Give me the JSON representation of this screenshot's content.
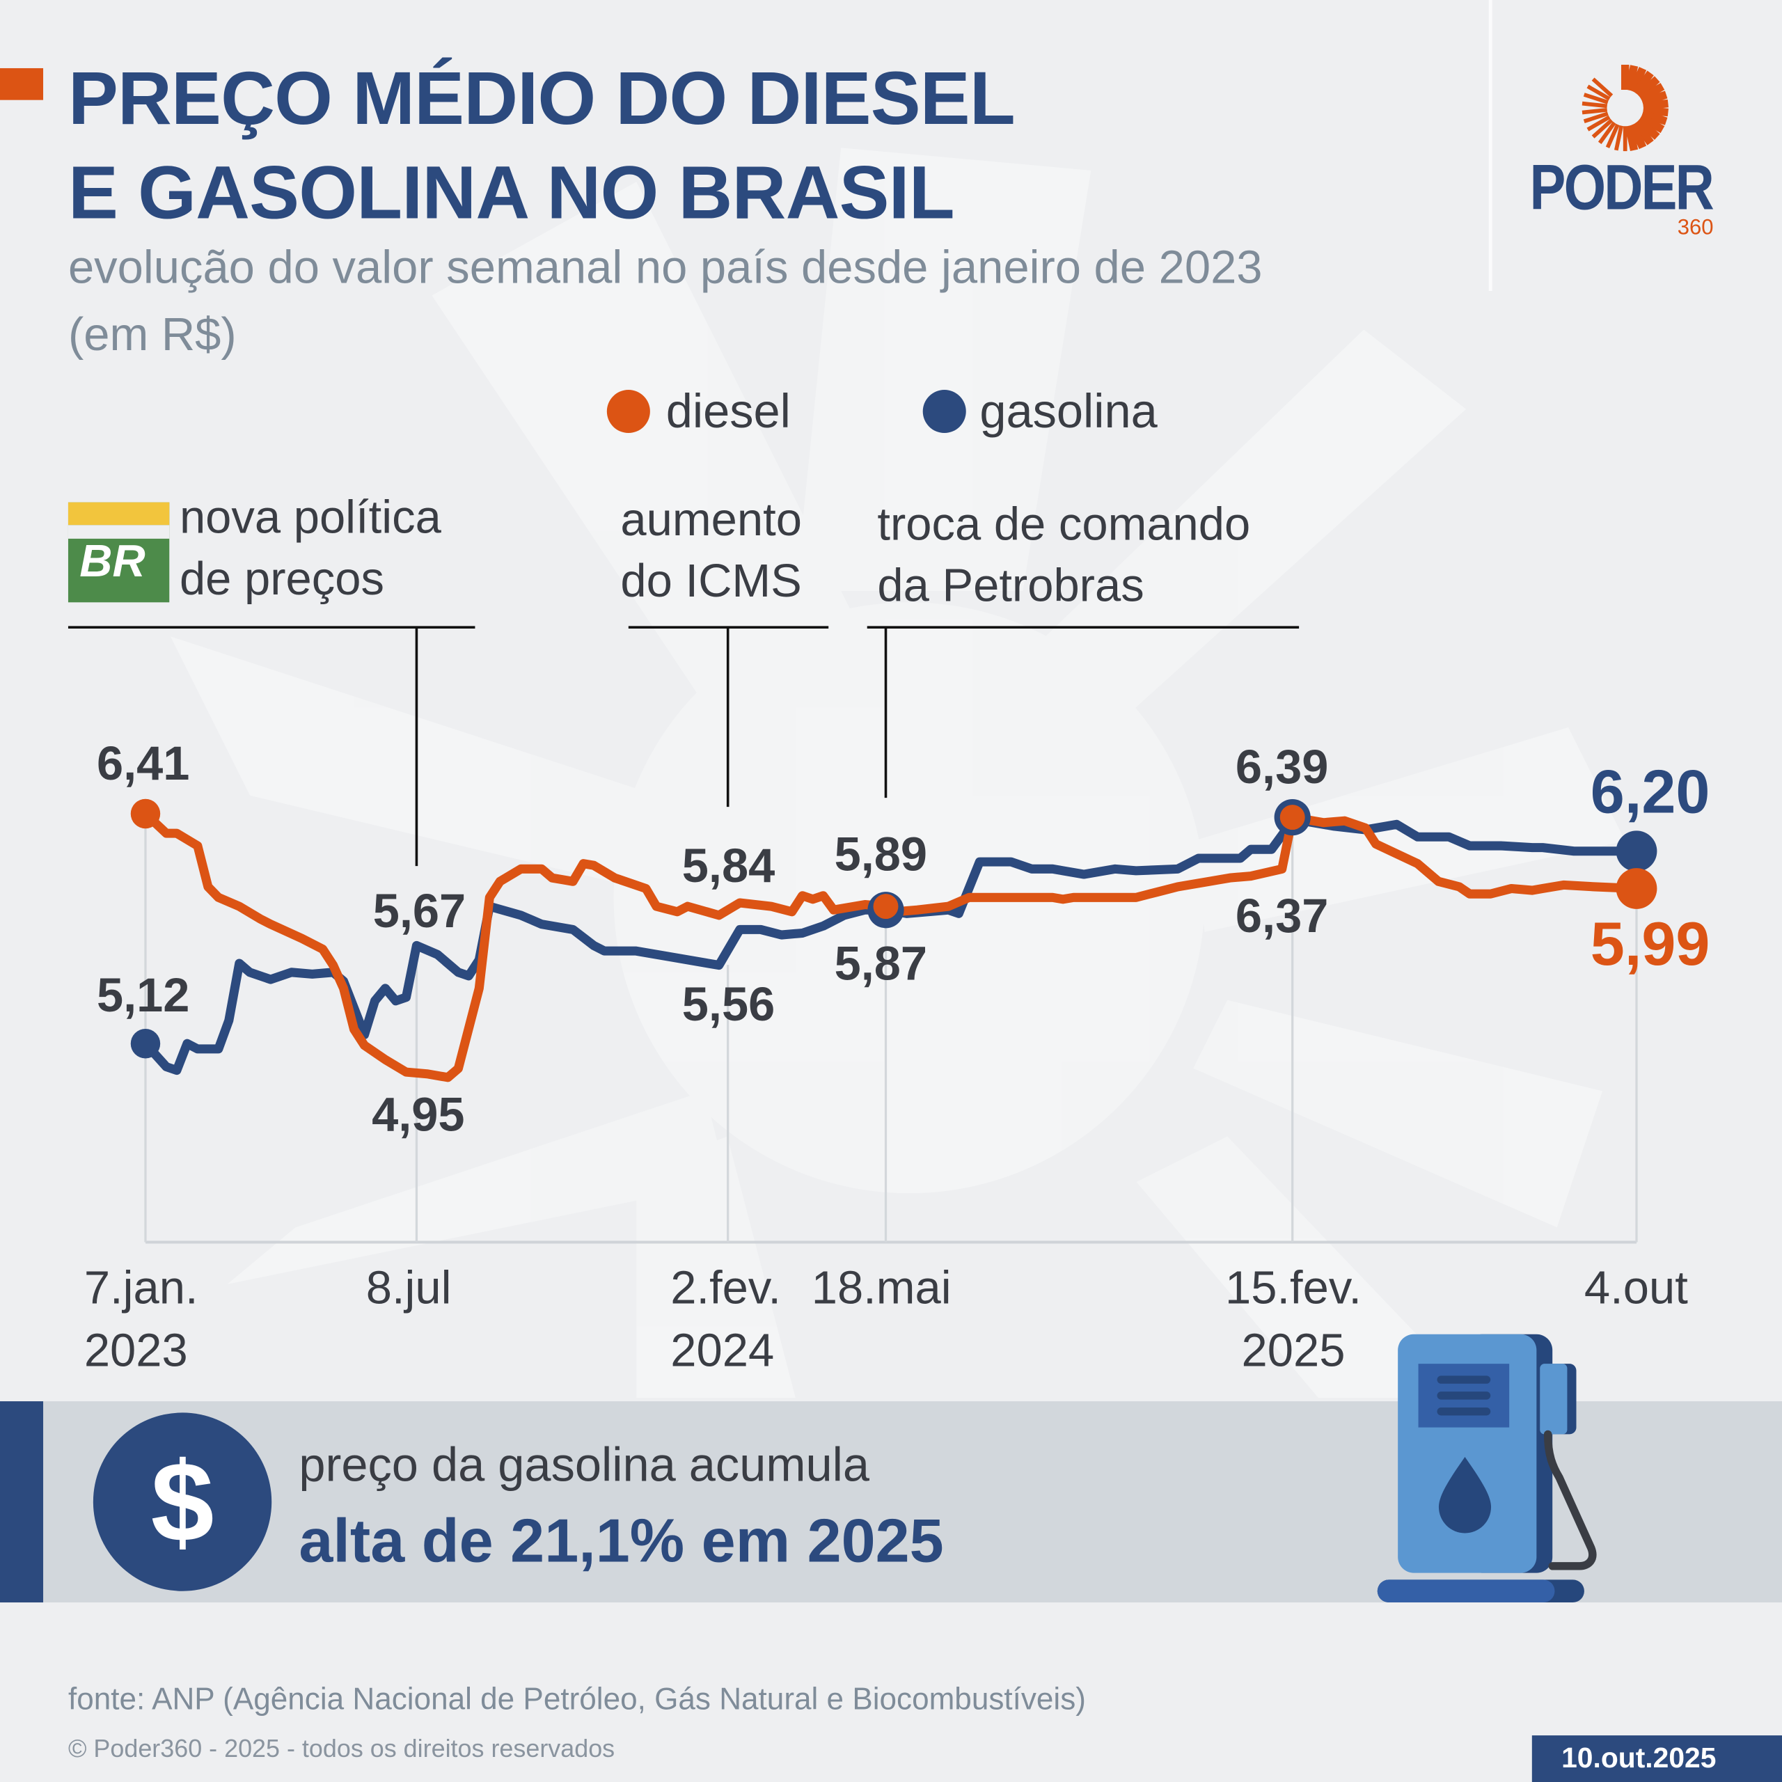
{
  "header": {
    "title_line1": "PREÇO MÉDIO DO DIESEL",
    "title_line2": "E GASOLINA NO BRASIL",
    "subtitle_line1": "evolução do valor semanal no país desde janeiro de 2023",
    "subtitle_line2": "(em R$)"
  },
  "logo": {
    "name": "PODER",
    "suffix": "360"
  },
  "legend": [
    {
      "label": "diesel",
      "color": "#dc5414"
    },
    {
      "label": "gasolina",
      "color": "#2c4a7e"
    }
  ],
  "annotations": [
    {
      "line1": "nova política",
      "line2": "de preços",
      "logo_text": "BR",
      "date": "2023-07-08"
    },
    {
      "line1": "aumento",
      "line2": "do ICMS",
      "date": "2024-02-02"
    },
    {
      "line1": "troca de comando",
      "line2": "da Petrobras",
      "date": "2024-05-18"
    }
  ],
  "chart_data": {
    "type": "line",
    "x_ticks": [
      {
        "date": "2023-01-07",
        "line1": "7.jan.",
        "line2": "2023"
      },
      {
        "date": "2023-07-08",
        "line1": "8.jul",
        "line2": ""
      },
      {
        "date": "2024-02-02",
        "line1": "2.fev.",
        "line2": "2024"
      },
      {
        "date": "2024-05-18",
        "line1": "18.mai",
        "line2": ""
      },
      {
        "date": "2025-02-15",
        "line1": "15.fev.",
        "line2": "2025"
      },
      {
        "date": "2025-10-04",
        "line1": "4.out",
        "line2": ""
      }
    ],
    "data_labels": {
      "diesel_start": "6,41",
      "gasolina_start": "5,12",
      "gasolina_jul23": "5,67",
      "diesel_jul23": "4,95",
      "diesel_feb24": "5,84",
      "gasolina_feb24": "5,56",
      "diesel_may24": "5,89",
      "gasolina_may24": "5,87",
      "diesel_feb25": "6,39",
      "gasolina_feb25": "6,37",
      "gasolina_end": "6,20",
      "diesel_end": "5,99"
    },
    "series": [
      {
        "name": "diesel",
        "color": "#dc5414",
        "points": [
          [
            "2023-01-07",
            6.41
          ],
          [
            "2023-01-21",
            6.3
          ],
          [
            "2023-01-28",
            6.3
          ],
          [
            "2023-02-11",
            6.23
          ],
          [
            "2023-02-18",
            6.0
          ],
          [
            "2023-02-25",
            5.94
          ],
          [
            "2023-03-11",
            5.89
          ],
          [
            "2023-03-25",
            5.82
          ],
          [
            "2023-04-01",
            5.79
          ],
          [
            "2023-04-22",
            5.71
          ],
          [
            "2023-05-06",
            5.65
          ],
          [
            "2023-05-13",
            5.56
          ],
          [
            "2023-05-20",
            5.43
          ],
          [
            "2023-05-27",
            5.2
          ],
          [
            "2023-06-03",
            5.11
          ],
          [
            "2023-06-17",
            5.03
          ],
          [
            "2023-07-01",
            4.96
          ],
          [
            "2023-07-15",
            4.95
          ],
          [
            "2023-07-29",
            4.93
          ],
          [
            "2023-08-05",
            4.98
          ],
          [
            "2023-08-19",
            5.43
          ],
          [
            "2023-08-26",
            5.94
          ],
          [
            "2023-09-02",
            6.03
          ],
          [
            "2023-09-16",
            6.1
          ],
          [
            "2023-09-30",
            6.1
          ],
          [
            "2023-10-07",
            6.05
          ],
          [
            "2023-10-21",
            6.03
          ],
          [
            "2023-10-28",
            6.13
          ],
          [
            "2023-11-04",
            6.12
          ],
          [
            "2023-11-18",
            6.05
          ],
          [
            "2023-12-09",
            5.99
          ],
          [
            "2023-12-16",
            5.89
          ],
          [
            "2023-12-30",
            5.86
          ],
          [
            "2024-01-06",
            5.89
          ],
          [
            "2024-01-27",
            5.84
          ],
          [
            "2024-02-10",
            5.91
          ],
          [
            "2024-03-02",
            5.89
          ],
          [
            "2024-03-16",
            5.86
          ],
          [
            "2024-03-23",
            5.95
          ],
          [
            "2024-03-30",
            5.93
          ],
          [
            "2024-04-06",
            5.95
          ],
          [
            "2024-04-13",
            5.87
          ],
          [
            "2024-05-04",
            5.9
          ],
          [
            "2024-05-18",
            5.89
          ],
          [
            "2024-05-25",
            5.86
          ],
          [
            "2024-06-08",
            5.87
          ],
          [
            "2024-06-29",
            5.89
          ],
          [
            "2024-07-13",
            5.94
          ],
          [
            "2024-09-07",
            5.94
          ],
          [
            "2024-09-14",
            5.93
          ],
          [
            "2024-09-21",
            5.94
          ],
          [
            "2024-11-02",
            5.94
          ],
          [
            "2024-11-16",
            5.97
          ],
          [
            "2024-11-30",
            6.0
          ],
          [
            "2024-12-21",
            6.03
          ],
          [
            "2025-01-04",
            6.05
          ],
          [
            "2025-01-18",
            6.06
          ],
          [
            "2025-02-08",
            6.1
          ],
          [
            "2025-02-15",
            6.39
          ],
          [
            "2025-02-22",
            6.38
          ],
          [
            "2025-03-08",
            6.36
          ],
          [
            "2025-03-22",
            6.37
          ],
          [
            "2025-04-05",
            6.33
          ],
          [
            "2025-04-12",
            6.24
          ],
          [
            "2025-05-10",
            6.13
          ],
          [
            "2025-05-24",
            6.03
          ],
          [
            "2025-06-07",
            6.0
          ],
          [
            "2025-06-14",
            5.96
          ],
          [
            "2025-06-28",
            5.96
          ],
          [
            "2025-07-12",
            5.99
          ],
          [
            "2025-07-26",
            5.98
          ],
          [
            "2025-08-02",
            5.99
          ],
          [
            "2025-08-16",
            6.01
          ],
          [
            "2025-09-06",
            6.0
          ],
          [
            "2025-10-04",
            5.99
          ]
        ]
      },
      {
        "name": "gasolina",
        "color": "#2c4a7e",
        "points": [
          [
            "2023-01-07",
            5.12
          ],
          [
            "2023-01-21",
            4.99
          ],
          [
            "2023-01-28",
            4.97
          ],
          [
            "2023-02-04",
            5.12
          ],
          [
            "2023-02-11",
            5.09
          ],
          [
            "2023-02-25",
            5.09
          ],
          [
            "2023-03-04",
            5.25
          ],
          [
            "2023-03-11",
            5.57
          ],
          [
            "2023-03-18",
            5.52
          ],
          [
            "2023-04-01",
            5.48
          ],
          [
            "2023-04-15",
            5.52
          ],
          [
            "2023-04-29",
            5.51
          ],
          [
            "2023-05-13",
            5.52
          ],
          [
            "2023-05-20",
            5.47
          ],
          [
            "2023-06-03",
            5.17
          ],
          [
            "2023-06-10",
            5.36
          ],
          [
            "2023-06-17",
            5.43
          ],
          [
            "2023-06-24",
            5.36
          ],
          [
            "2023-07-01",
            5.38
          ],
          [
            "2023-07-08",
            5.67
          ],
          [
            "2023-07-22",
            5.62
          ],
          [
            "2023-08-05",
            5.52
          ],
          [
            "2023-08-12",
            5.5
          ],
          [
            "2023-08-19",
            5.59
          ],
          [
            "2023-08-26",
            5.89
          ],
          [
            "2023-09-16",
            5.84
          ],
          [
            "2023-09-30",
            5.79
          ],
          [
            "2023-10-21",
            5.76
          ],
          [
            "2023-11-04",
            5.67
          ],
          [
            "2023-11-11",
            5.64
          ],
          [
            "2023-12-02",
            5.64
          ],
          [
            "2023-12-16",
            5.62
          ],
          [
            "2023-12-30",
            5.6
          ],
          [
            "2024-01-20",
            5.57
          ],
          [
            "2024-01-27",
            5.56
          ],
          [
            "2024-02-10",
            5.76
          ],
          [
            "2024-02-24",
            5.76
          ],
          [
            "2024-03-09",
            5.73
          ],
          [
            "2024-03-23",
            5.74
          ],
          [
            "2024-04-06",
            5.78
          ],
          [
            "2024-04-20",
            5.84
          ],
          [
            "2024-05-04",
            5.87
          ],
          [
            "2024-05-18",
            5.87
          ],
          [
            "2024-06-01",
            5.85
          ],
          [
            "2024-06-29",
            5.87
          ],
          [
            "2024-07-06",
            5.85
          ],
          [
            "2024-07-20",
            6.14
          ],
          [
            "2024-08-10",
            6.14
          ],
          [
            "2024-08-24",
            6.1
          ],
          [
            "2024-09-07",
            6.1
          ],
          [
            "2024-09-28",
            6.07
          ],
          [
            "2024-10-19",
            6.1
          ],
          [
            "2024-11-02",
            6.09
          ],
          [
            "2024-11-30",
            6.1
          ],
          [
            "2024-12-14",
            6.16
          ],
          [
            "2025-01-11",
            6.16
          ],
          [
            "2025-01-18",
            6.21
          ],
          [
            "2025-02-01",
            6.21
          ],
          [
            "2025-02-15",
            6.37
          ],
          [
            "2025-02-22",
            6.37
          ],
          [
            "2025-03-15",
            6.34
          ],
          [
            "2025-04-05",
            6.32
          ],
          [
            "2025-04-26",
            6.35
          ],
          [
            "2025-05-10",
            6.28
          ],
          [
            "2025-05-31",
            6.28
          ],
          [
            "2025-06-14",
            6.23
          ],
          [
            "2025-07-05",
            6.23
          ],
          [
            "2025-07-26",
            6.22
          ],
          [
            "2025-08-02",
            6.22
          ],
          [
            "2025-08-23",
            6.2
          ],
          [
            "2025-09-20",
            6.2
          ],
          [
            "2025-10-04",
            6.2
          ]
        ]
      }
    ]
  },
  "banner": {
    "icon": "dollar-icon",
    "symbol": "$",
    "line1": "preço da gasolina acumula",
    "line2": "alta de 21,1% em 2025"
  },
  "footer": {
    "source": "fonte: ANP (Agência Nacional de Petróleo, Gás Natural e Biocombustíveis)",
    "copyright": "© Poder360 - 2025 - todos os direitos reservados",
    "date": "10.out.2025"
  }
}
